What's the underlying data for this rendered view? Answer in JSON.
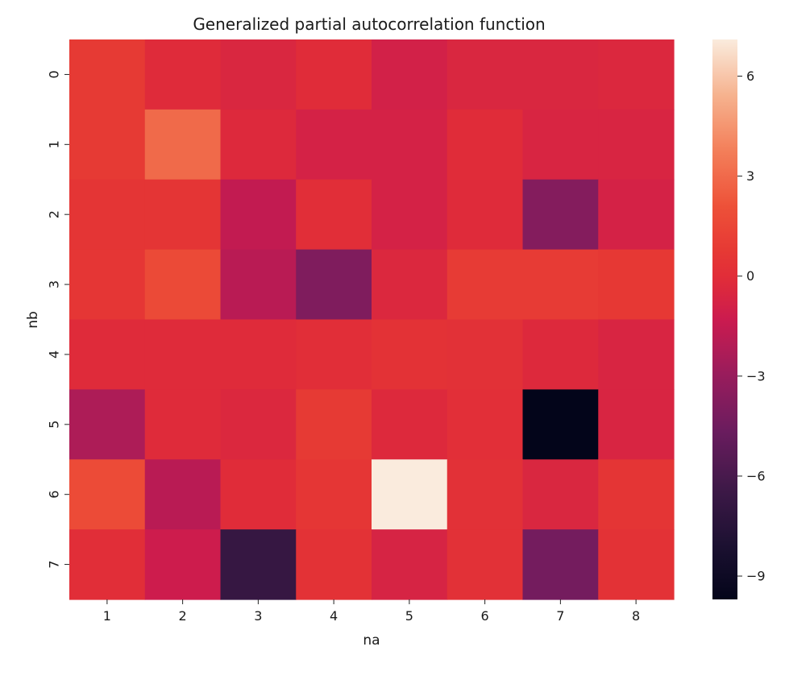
{
  "chart_data": {
    "type": "heatmap",
    "title": "Generalized partial autocorrelation function",
    "xlabel": "na",
    "ylabel": "nb",
    "x_categories": [
      "1",
      "2",
      "3",
      "4",
      "5",
      "6",
      "7",
      "8"
    ],
    "y_categories": [
      "0",
      "1",
      "2",
      "3",
      "4",
      "5",
      "6",
      "7"
    ],
    "values": [
      [
        0.8,
        -0.2,
        -0.5,
        -0.1,
        -0.9,
        -0.5,
        -0.5,
        -0.4
      ],
      [
        0.8,
        3.0,
        -0.3,
        -0.8,
        -0.8,
        -0.1,
        -0.6,
        -0.6
      ],
      [
        0.5,
        0.5,
        -1.6,
        0.0,
        -0.8,
        -0.2,
        -3.7,
        -0.8
      ],
      [
        0.6,
        1.7,
        -1.9,
        -3.9,
        -0.4,
        0.9,
        0.9,
        0.7
      ],
      [
        -0.2,
        -0.2,
        -0.2,
        0.0,
        0.3,
        0.2,
        -0.3,
        -0.6
      ],
      [
        -2.3,
        -0.2,
        -0.4,
        0.8,
        -0.3,
        0.1,
        -9.7,
        -0.6
      ],
      [
        1.8,
        -1.9,
        -0.1,
        0.6,
        7.1,
        0.2,
        -0.5,
        0.5
      ],
      [
        0.0,
        -1.2,
        -6.8,
        0.3,
        -0.7,
        0.2,
        -4.3,
        0.3
      ]
    ],
    "vmin": -9.7,
    "vmax": 7.1,
    "colorbar": {
      "ticks": [
        6,
        3,
        0,
        -3,
        -6,
        -9
      ],
      "tick_labels": [
        "6",
        "3",
        "0",
        "−3",
        "−6",
        "−9"
      ]
    },
    "colormap": "rocket",
    "grid": false,
    "legend": "colorbar-right"
  }
}
